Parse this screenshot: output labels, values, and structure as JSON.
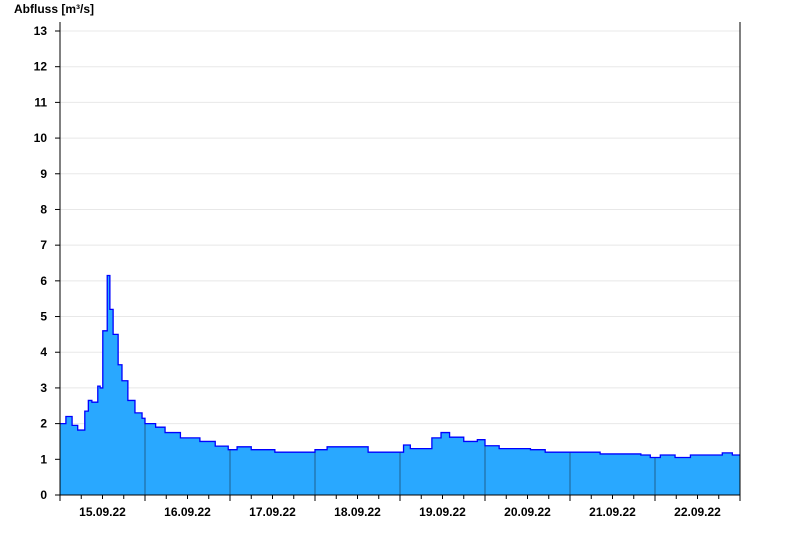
{
  "chart_data": {
    "type": "area",
    "title": "",
    "ylabel": "Abfluss [m³/s]",
    "xlabel": "",
    "ylim": [
      0,
      13
    ],
    "yticks": [
      0,
      1,
      2,
      3,
      4,
      5,
      6,
      7,
      8,
      9,
      10,
      11,
      12,
      13
    ],
    "xlim": [
      "15.09.22 00:00",
      "23.09.22 00:00"
    ],
    "xtick_labels": [
      "15.09.22",
      "16.09.22",
      "17.09.22",
      "18.09.22",
      "19.09.22",
      "20.09.22",
      "21.09.22",
      "22.09.22"
    ],
    "grid": true,
    "colors": {
      "fill": "#29a8ff",
      "line": "#0000ff",
      "day_separator": "#1f5f8f",
      "grid": "#e8e8e8"
    },
    "series": [
      {
        "points": [
          [
            "15.09.22 00:00",
            2.0
          ],
          [
            "15.09.22 01:40",
            2.2
          ],
          [
            "15.09.22 03:25",
            1.95
          ],
          [
            "15.09.22 05:00",
            1.82
          ],
          [
            "15.09.22 06:10",
            1.82
          ],
          [
            "15.09.22 07:00",
            2.35
          ],
          [
            "15.09.22 08:00",
            2.65
          ],
          [
            "15.09.22 09:00",
            2.6
          ],
          [
            "15.09.22 10:40",
            3.05
          ],
          [
            "15.09.22 11:20",
            3.0
          ],
          [
            "15.09.22 12:05",
            4.6
          ],
          [
            "15.09.22 13:20",
            6.15
          ],
          [
            "15.09.22 14:05",
            5.2
          ],
          [
            "15.09.22 15:00",
            4.5
          ],
          [
            "15.09.22 16:25",
            3.65
          ],
          [
            "15.09.22 17:30",
            3.2
          ],
          [
            "15.09.22 19:10",
            2.65
          ],
          [
            "15.09.22 21:10",
            2.3
          ],
          [
            "15.09.22 23:10",
            2.15
          ],
          [
            "16.09.22 00:00",
            2.0
          ],
          [
            "16.09.22 03:00",
            1.9
          ],
          [
            "16.09.22 05:40",
            1.75
          ],
          [
            "16.09.22 10:00",
            1.6
          ],
          [
            "16.09.22 15:30",
            1.5
          ],
          [
            "16.09.22 19:50",
            1.37
          ],
          [
            "16.09.22 23:30",
            1.27
          ],
          [
            "17.09.22 02:00",
            1.35
          ],
          [
            "17.09.22 06:00",
            1.27
          ],
          [
            "17.09.22 12:40",
            1.2
          ],
          [
            "17.09.22 19:50",
            1.2
          ],
          [
            "18.09.22 00:00",
            1.27
          ],
          [
            "18.09.22 03:25",
            1.35
          ],
          [
            "18.09.22 10:30",
            1.35
          ],
          [
            "18.09.22 15:00",
            1.2
          ],
          [
            "18.09.22 21:00",
            1.2
          ],
          [
            "19.09.22 01:00",
            1.4
          ],
          [
            "19.09.22 02:55",
            1.3
          ],
          [
            "19.09.22 06:00",
            1.3
          ],
          [
            "19.09.22 09:00",
            1.6
          ],
          [
            "19.09.22 11:35",
            1.75
          ],
          [
            "19.09.22 14:00",
            1.62
          ],
          [
            "19.09.22 18:00",
            1.5
          ],
          [
            "19.09.22 21:50",
            1.55
          ],
          [
            "20.09.22 00:00",
            1.38
          ],
          [
            "20.09.22 04:00",
            1.3
          ],
          [
            "20.09.22 12:50",
            1.27
          ],
          [
            "20.09.22 17:00",
            1.2
          ],
          [
            "21.09.22 03:00",
            1.2
          ],
          [
            "21.09.22 08:30",
            1.15
          ],
          [
            "21.09.22 20:00",
            1.12
          ],
          [
            "21.09.22 22:40",
            1.05
          ],
          [
            "22.09.22 01:30",
            1.12
          ],
          [
            "22.09.22 05:40",
            1.05
          ],
          [
            "22.09.22 10:00",
            1.12
          ],
          [
            "22.09.22 17:00",
            1.12
          ],
          [
            "22.09.22 19:00",
            1.18
          ],
          [
            "22.09.22 21:50",
            1.12
          ],
          [
            "23.09.22 00:00",
            1.12
          ]
        ]
      }
    ]
  }
}
